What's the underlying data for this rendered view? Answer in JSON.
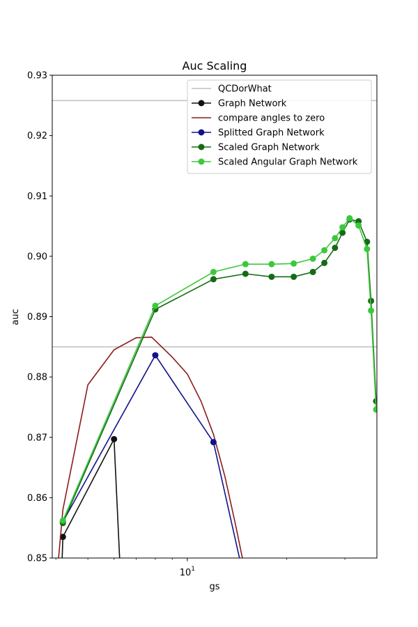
{
  "chart_data": {
    "type": "line",
    "title": "Auc Scaling",
    "xlabel": "gs",
    "ylabel": "auc",
    "xscale": "log",
    "xlim": [
      3.9,
      37.5
    ],
    "ylim": [
      0.85,
      0.93
    ],
    "x_major_tick_labels": [
      {
        "value": 10,
        "label": "10"
      }
    ],
    "x_minor_ticks": [
      4,
      5,
      6,
      7,
      8,
      9,
      20,
      30
    ],
    "y_ticks": [
      0.85,
      0.86,
      0.87,
      0.88,
      0.89,
      0.9,
      0.91,
      0.92,
      0.93
    ],
    "y_tick_labels": [
      "0.85",
      "0.86",
      "0.87",
      "0.88",
      "0.89",
      "0.90",
      "0.91",
      "0.92",
      "0.93"
    ],
    "grid": false,
    "legend_position": "top-right",
    "reference_lines": [
      {
        "name": "QCDorWhat",
        "y": 0.9258,
        "color": "#bfbfbf"
      },
      {
        "y": 0.885,
        "color": "#bfbfbf"
      }
    ],
    "series": [
      {
        "name": "Graph Network",
        "color": "#111111",
        "markers": true,
        "x": [
          4.15,
          4.2,
          6.0,
          6.3
        ],
        "y": [
          0.845,
          0.8535,
          0.8697,
          0.845
        ]
      },
      {
        "name": "compare angles to zero",
        "color": "#8b1a1a",
        "markers": false,
        "x": [
          4.0,
          4.2,
          5.0,
          6.0,
          7.0,
          7.8,
          9.0,
          10.0,
          11.0,
          12.0,
          13.0,
          14.0,
          15.0
        ],
        "y": [
          0.845,
          0.858,
          0.8787,
          0.8845,
          0.8865,
          0.8866,
          0.8833,
          0.8805,
          0.876,
          0.8705,
          0.8635,
          0.8555,
          0.8475
        ]
      },
      {
        "name": "Splitted Graph Network",
        "color": "#12128a",
        "markers": true,
        "x": [
          4.2,
          8.0,
          12.0,
          14.8
        ],
        "y": [
          0.856,
          0.8836,
          0.8692,
          0.847
        ]
      },
      {
        "name": "Scaled Graph Network",
        "color": "#156b15",
        "markers": true,
        "x": [
          4.2,
          8.0,
          12.0,
          15.0,
          18.0,
          21.0,
          24.0,
          26.0,
          28.0,
          29.5,
          31.0,
          33.0,
          35.0,
          36.0,
          37.3
        ],
        "y": [
          0.8558,
          0.8912,
          0.8962,
          0.8971,
          0.8966,
          0.8966,
          0.8974,
          0.8989,
          0.9014,
          0.9039,
          0.9061,
          0.9058,
          0.9024,
          0.8926,
          0.876
        ]
      },
      {
        "name": "Scaled Angular Graph Network",
        "color": "#3cc83c",
        "markers": true,
        "x": [
          4.2,
          8.0,
          12.0,
          15.0,
          18.0,
          21.0,
          24.0,
          26.0,
          28.0,
          29.5,
          31.0,
          33.0,
          35.0,
          36.0,
          37.3
        ],
        "y": [
          0.8562,
          0.8918,
          0.8974,
          0.8987,
          0.8987,
          0.8988,
          0.8996,
          0.901,
          0.903,
          0.9048,
          0.9063,
          0.9051,
          0.9012,
          0.891,
          0.8746
        ]
      }
    ]
  }
}
